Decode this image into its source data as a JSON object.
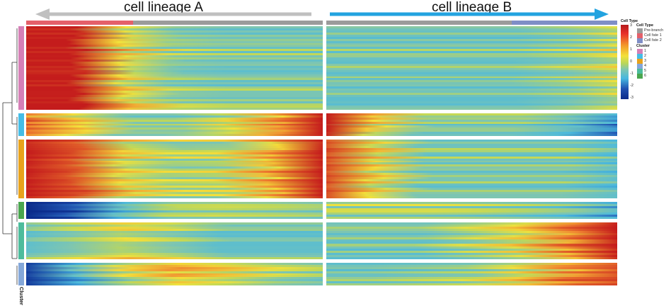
{
  "lineages": {
    "a": "cell lineage A",
    "b": "cell lineage B"
  },
  "colors": {
    "arrow_a": "#c0c0c0",
    "arrow_b": "#22a3e0",
    "prebranch": "#9b9b9b",
    "fate1": "#e4606a",
    "fate2": "#7f8ec6"
  },
  "chart_data": {
    "type": "heatmap",
    "title": "",
    "color_scale": {
      "ticks": [
        "3",
        "2",
        "1",
        "0",
        "-1",
        "-2",
        "-3"
      ],
      "range": [
        -3,
        3
      ],
      "title": "Cell Type"
    },
    "annotation_legend": {
      "title": "Cell Type",
      "items": [
        {
          "label": "Pre-branch",
          "color": "#9b9b9b"
        },
        {
          "label": "Cell fate 1",
          "color": "#e4606a"
        },
        {
          "label": "Cell fate 2",
          "color": "#7f8ec6"
        }
      ]
    },
    "cluster_legend": {
      "title": "Cluster",
      "items": [
        {
          "label": "1",
          "color": "#d57fb6"
        },
        {
          "label": "2",
          "color": "#45bde6"
        },
        {
          "label": "3",
          "color": "#e8a21c"
        },
        {
          "label": "4",
          "color": "#84a7d9"
        },
        {
          "label": "5",
          "color": "#4dbc9c"
        },
        {
          "label": "6",
          "color": "#4aa64e"
        }
      ]
    },
    "row_annotation_label": "Cluster",
    "clusters": [
      {
        "id": "1",
        "color": "#d57fb6",
        "rows": 40,
        "lineage_a": [
          3,
          3,
          1,
          0.2,
          0,
          0,
          0
        ],
        "lineage_b": [
          0,
          0,
          0,
          0,
          0,
          0.3,
          0.8
        ]
      },
      {
        "id": "2",
        "color": "#45bde6",
        "rows": 11,
        "lineage_a": [
          2,
          1,
          0,
          0,
          0.6,
          1.6,
          3
        ],
        "lineage_b": [
          3,
          1,
          0,
          0,
          0,
          -0.5,
          -1.5
        ]
      },
      {
        "id": "3",
        "color": "#e8a21c",
        "rows": 28,
        "lineage_a": [
          3,
          2.5,
          1,
          0.5,
          0.6,
          1.5,
          3
        ],
        "lineage_b": [
          2.5,
          1,
          0,
          0,
          0,
          0,
          -0.5
        ]
      },
      {
        "id": "6",
        "color": "#4aa64e",
        "rows": 8,
        "lineage_a": [
          -3,
          -2,
          -0.5,
          0.5,
          0.6,
          0.5,
          0.3
        ],
        "lineage_b": [
          0.3,
          0.3,
          0.3,
          0.2,
          0,
          -0.3,
          -1
        ]
      },
      {
        "id": "5",
        "color": "#4dbc9c",
        "rows": 17,
        "lineage_a": [
          0,
          0.5,
          1,
          0.6,
          0,
          0,
          0
        ],
        "lineage_b": [
          0,
          0,
          0,
          0.5,
          1,
          2,
          3
        ]
      },
      {
        "id": "4",
        "color": "#84a7d9",
        "rows": 11,
        "lineage_a": [
          -2.5,
          -1,
          0.5,
          1.2,
          0.8,
          0.3,
          0
        ],
        "lineage_b": [
          0,
          0,
          0.2,
          0.4,
          1,
          2,
          2.5
        ]
      }
    ]
  }
}
